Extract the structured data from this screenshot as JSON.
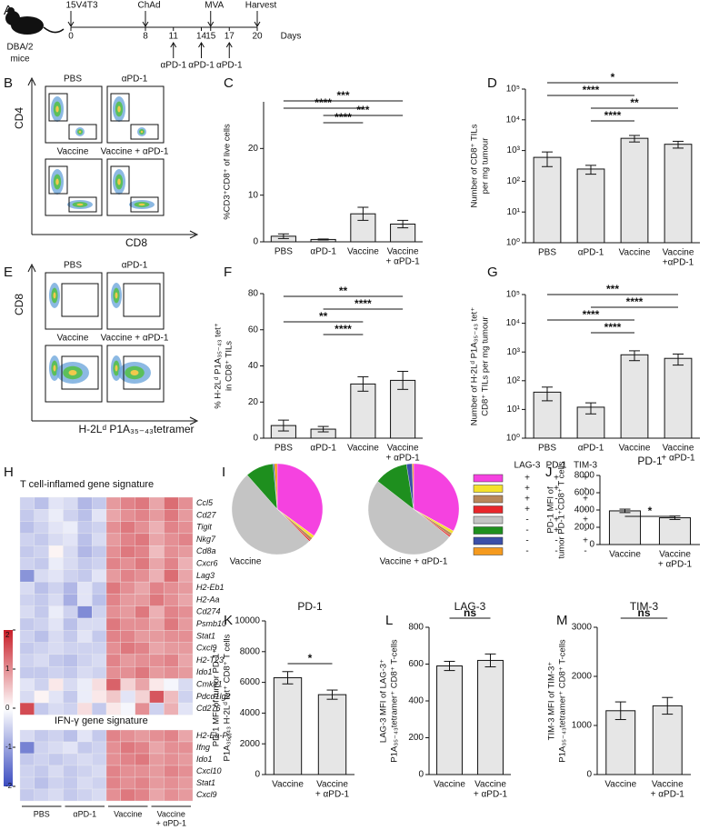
{
  "panel_labels": [
    "A",
    "B",
    "C",
    "D",
    "E",
    "F",
    "G",
    "H",
    "I",
    "J",
    "K",
    "L",
    "M"
  ],
  "timeline": {
    "mouse_label": [
      "DBA/2",
      "mice"
    ],
    "xlim": [
      0,
      20
    ],
    "ticks": [
      0,
      8,
      11,
      14,
      15,
      17,
      20
    ],
    "events_above": [
      {
        "day": 0,
        "label": "15V4T3"
      },
      {
        "day": 8,
        "label": "ChAd"
      },
      {
        "day": 15,
        "label": "MVA"
      },
      {
        "day": 20,
        "label": "Harvest"
      }
    ],
    "events_below": [
      {
        "day": 11,
        "label": "αPD-1"
      },
      {
        "day": 14,
        "label": "αPD-1"
      },
      {
        "day": 17,
        "label": "αPD-1"
      }
    ],
    "axis_label": "Days"
  },
  "flow_B": {
    "plots": [
      "PBS",
      "αPD-1",
      "Vaccine",
      "Vaccine + αPD-1"
    ],
    "x_axis": "CD8",
    "y_axis": "CD4"
  },
  "flow_E": {
    "plots": [
      "PBS",
      "αPD-1",
      "Vaccine",
      "Vaccine + αPD-1"
    ],
    "x_axis": "H-2Lᵈ P1A₃₅₋₄₃tetramer",
    "y_axis": "CD8"
  },
  "heatmap": {
    "sections": [
      {
        "title": "T cell-inflamed gene signature",
        "genes": [
          "Ccl5",
          "Cd27",
          "Tigit",
          "Nkg7",
          "Cd8a",
          "Cxcr6",
          "Lag3",
          "H2-Eb1",
          "H2-Aa",
          "Cd274",
          "Psmb10",
          "Stat1",
          "Cxcl9",
          "H2-T23",
          "Ido1",
          "Cmklr1",
          "Pdcd1lg2",
          "Cd276"
        ],
        "values": [
          [
            -0.5,
            -0.7,
            -0.3,
            -0.4,
            -0.8,
            -0.6,
            0.9,
            1.1,
            1.2,
            0.8,
            1.3,
            1.0
          ],
          [
            -0.6,
            -0.4,
            -0.2,
            -0.5,
            -0.7,
            -0.3,
            0.8,
            1.0,
            1.1,
            0.9,
            1.2,
            0.9
          ],
          [
            -0.7,
            -0.5,
            -0.3,
            -0.2,
            -0.6,
            -0.5,
            1.0,
            1.2,
            1.0,
            0.7,
            1.1,
            1.0
          ],
          [
            -0.5,
            -0.6,
            -0.4,
            -0.3,
            -0.7,
            -0.4,
            0.9,
            1.1,
            1.2,
            0.8,
            1.0,
            1.1
          ],
          [
            -0.6,
            -0.5,
            0.1,
            -0.4,
            -0.8,
            -0.6,
            1.0,
            1.2,
            1.1,
            0.6,
            1.0,
            0.9
          ],
          [
            -0.5,
            -0.6,
            -0.2,
            -0.4,
            -0.6,
            -0.5,
            1.1,
            1.0,
            1.2,
            0.8,
            1.1,
            0.7
          ],
          [
            -1.2,
            -0.4,
            -0.3,
            -0.5,
            -0.6,
            -0.3,
            0.9,
            1.1,
            1.0,
            0.7,
            1.3,
            0.8
          ],
          [
            -0.4,
            -0.7,
            -0.5,
            -0.8,
            -0.3,
            -0.6,
            1.2,
            1.0,
            0.8,
            1.1,
            1.0,
            0.9
          ],
          [
            -0.5,
            -0.6,
            -0.4,
            -0.9,
            -0.3,
            -0.7,
            1.1,
            0.9,
            0.9,
            1.2,
            1.0,
            0.8
          ],
          [
            -0.4,
            -0.6,
            -0.2,
            -0.5,
            -1.3,
            -0.5,
            1.0,
            0.9,
            1.2,
            0.7,
            1.1,
            1.0
          ],
          [
            -0.6,
            -0.5,
            -0.3,
            -0.7,
            -0.4,
            -0.4,
            1.2,
            1.0,
            1.0,
            0.8,
            1.2,
            0.9
          ],
          [
            -0.5,
            -0.7,
            -0.4,
            -0.6,
            -0.3,
            -0.6,
            1.1,
            1.1,
            0.9,
            0.9,
            1.0,
            1.0
          ],
          [
            -0.6,
            -0.5,
            -0.4,
            -0.5,
            -0.5,
            -0.5,
            1.0,
            1.2,
            1.1,
            0.8,
            0.9,
            0.9
          ],
          [
            -0.5,
            -0.4,
            -0.6,
            -0.7,
            -0.5,
            -0.4,
            1.1,
            0.9,
            1.0,
            1.0,
            1.1,
            0.8
          ],
          [
            -0.6,
            -0.6,
            -0.5,
            -0.6,
            -0.4,
            -0.5,
            1.0,
            1.0,
            1.2,
            0.9,
            1.0,
            0.9
          ],
          [
            -0.3,
            -0.5,
            0.2,
            -0.4,
            -0.2,
            0.3,
            1.4,
            0.4,
            0.8,
            0.2,
            -0.1,
            -0.4
          ],
          [
            -0.4,
            0.1,
            -0.3,
            -0.6,
            -0.2,
            0.2,
            0.5,
            -0.3,
            0.4,
            1.5,
            0.6,
            -0.5
          ],
          [
            1.6,
            -0.6,
            -0.4,
            -0.5,
            0.3,
            -0.6,
            0.2,
            -0.1,
            1.0,
            -0.5,
            0.7,
            -0.3
          ]
        ]
      },
      {
        "title": "IFN-γ gene signature",
        "genes": [
          "H2-Ea-Ps",
          "Ifng",
          "Ido1",
          "Cxcl10",
          "Stat1",
          "Cxcl9"
        ],
        "values": [
          [
            -0.4,
            -0.6,
            -0.5,
            -0.7,
            -0.3,
            -0.6,
            1.1,
            1.0,
            0.9,
            1.0,
            1.1,
            0.8
          ],
          [
            -1.4,
            -0.5,
            -0.4,
            -0.3,
            -0.6,
            -0.5,
            1.0,
            1.2,
            1.1,
            0.8,
            1.0,
            1.0
          ],
          [
            -0.6,
            -0.5,
            -0.6,
            -0.5,
            -0.4,
            -0.5,
            1.0,
            1.1,
            1.2,
            0.9,
            1.0,
            0.9
          ],
          [
            -0.5,
            -0.6,
            -0.4,
            -0.6,
            -0.5,
            -0.4,
            1.1,
            1.0,
            1.0,
            0.9,
            1.1,
            1.0
          ],
          [
            -0.5,
            -0.7,
            -0.5,
            -0.6,
            -0.4,
            -0.5,
            1.1,
            1.0,
            1.1,
            0.9,
            1.0,
            0.9
          ],
          [
            -0.6,
            -0.5,
            -0.4,
            -0.6,
            -0.5,
            -0.4,
            1.0,
            1.2,
            1.1,
            0.8,
            1.0,
            0.9
          ]
        ]
      }
    ],
    "groups": [
      [
        "PBS"
      ],
      [
        "αPD-1"
      ],
      [
        "Vaccine"
      ],
      [
        "Vaccine",
        "+ αPD-1"
      ]
    ],
    "colorbar_ticks": [
      2,
      1,
      0,
      -1,
      -2
    ],
    "clim": [
      -2,
      2
    ]
  },
  "chart_data": [
    {
      "type": "bar",
      "ylabel": [
        "%CD3⁺CD8⁺ of live cells"
      ],
      "categories": [
        [
          "PBS"
        ],
        [
          "αPD-1"
        ],
        [
          "Vaccine"
        ],
        [
          "Vaccine",
          "+ αPD-1"
        ]
      ],
      "values": [
        1.2,
        0.5,
        6,
        3.8
      ],
      "errors": [
        0.5,
        0.1,
        1.4,
        0.8
      ],
      "color": "#e6e6e6",
      "ylim": [
        0,
        30
      ],
      "yticks": [
        0,
        10,
        20
      ],
      "comparisons": [
        {
          "groups": [
            0,
            3
          ],
          "label": "***"
        },
        {
          "groups": [
            0,
            2
          ],
          "label": "****"
        },
        {
          "groups": [
            1,
            3
          ],
          "label": "***"
        },
        {
          "groups": [
            1,
            2
          ],
          "label": "****"
        }
      ]
    },
    {
      "type": "bar",
      "log": true,
      "ylabel": [
        "Number  of CD8⁺ TILs",
        "per mg tumour"
      ],
      "categories": [
        [
          "PBS"
        ],
        [
          "αPD-1"
        ],
        [
          "Vaccine"
        ],
        [
          "Vaccine",
          "+αPD-1"
        ]
      ],
      "values": [
        600,
        250,
        2500,
        1600
      ],
      "errors": [
        300,
        80,
        600,
        400
      ],
      "color": "#e6e6e6",
      "ylim": [
        1,
        100000
      ],
      "yticks": [
        {
          "value": 1,
          "label": "10⁰"
        },
        {
          "value": 10,
          "label": "10¹"
        },
        {
          "value": 100,
          "label": "10²"
        },
        {
          "value": 1000,
          "label": "10³"
        },
        {
          "value": 10000,
          "label": "10⁴"
        },
        {
          "value": 100000,
          "label": "10⁵"
        }
      ],
      "comparisons": [
        {
          "groups": [
            0,
            3
          ],
          "label": "*"
        },
        {
          "groups": [
            0,
            2
          ],
          "label": "****"
        },
        {
          "groups": [
            1,
            3
          ],
          "label": "**"
        },
        {
          "groups": [
            1,
            2
          ],
          "label": "****"
        }
      ]
    },
    {
      "type": "bar",
      "ylabel": [
        "% H-2Lᵈ P1A₃₅₋₄₃ tet⁺",
        "in CD8⁺ TILs"
      ],
      "categories": [
        [
          "PBS"
        ],
        [
          "αPD-1"
        ],
        [
          "Vaccine"
        ],
        [
          "Vaccine",
          "+ αPD-1"
        ]
      ],
      "values": [
        7,
        5,
        30,
        32
      ],
      "errors": [
        3,
        1.5,
        4,
        5
      ],
      "color": "#e6e6e6",
      "ylim": [
        0,
        80
      ],
      "yticks": [
        0,
        20,
        40,
        60,
        80
      ],
      "comparisons": [
        {
          "groups": [
            0,
            3
          ],
          "label": "**"
        },
        {
          "groups": [
            1,
            3
          ],
          "label": "****"
        },
        {
          "groups": [
            0,
            2
          ],
          "label": "**"
        },
        {
          "groups": [
            1,
            2
          ],
          "label": "****"
        }
      ]
    },
    {
      "type": "bar",
      "log": true,
      "ylabel": [
        "Number of H-2Lᵈ P1A₃₅₋₄₃ tet⁺",
        "CD8⁺ TILs per mg tumour"
      ],
      "categories": [
        [
          "PBS"
        ],
        [
          "αPD-1"
        ],
        [
          "Vaccine"
        ],
        [
          "Vaccine",
          "+ αPD-1"
        ]
      ],
      "values": [
        40,
        12,
        800,
        600
      ],
      "errors": [
        20,
        5,
        300,
        250
      ],
      "color": "#e6e6e6",
      "ylim": [
        1,
        100000
      ],
      "yticks": [
        {
          "value": 1,
          "label": "10⁰"
        },
        {
          "value": 10,
          "label": "10¹"
        },
        {
          "value": 100,
          "label": "10²"
        },
        {
          "value": 1000,
          "label": "10³"
        },
        {
          "value": 10000,
          "label": "10⁴"
        },
        {
          "value": 100000,
          "label": "10⁵"
        }
      ],
      "comparisons": [
        {
          "groups": [
            0,
            3
          ],
          "label": "***"
        },
        {
          "groups": [
            1,
            3
          ],
          "label": "****"
        },
        {
          "groups": [
            0,
            2
          ],
          "label": "****"
        },
        {
          "groups": [
            1,
            2
          ],
          "label": "****"
        }
      ]
    },
    {
      "type": "bar",
      "title": "PD-1",
      "ylabel": [
        "PD-1 MFI of",
        "tumor PD-1⁺CD8⁺ T cells"
      ],
      "categories": [
        [
          "Vaccine"
        ],
        [
          "Vaccine",
          "+ αPD-1"
        ]
      ],
      "values": [
        3900,
        3100
      ],
      "errors": [
        200,
        200
      ],
      "color": "#e6e6e6",
      "ylim": [
        0,
        8000
      ],
      "yticks": [
        0,
        2000,
        4000,
        6000,
        8000
      ],
      "comparisons": [
        {
          "groups": [
            0,
            1
          ],
          "label": "*"
        }
      ]
    },
    {
      "type": "bar",
      "title": "PD-1",
      "ylabel": [
        "PD-1 MFI of  tumor PD-1⁺",
        "P1A₃₅₋₄₃ H-2Lᵈ tet⁺ CD8⁺ T cells"
      ],
      "categories": [
        [
          "Vaccine"
        ],
        [
          "Vaccine",
          "+ αPD-1"
        ]
      ],
      "values": [
        6300,
        5200
      ],
      "errors": [
        400,
        300
      ],
      "color": "#e6e6e6",
      "ylim": [
        0,
        10000
      ],
      "yticks": [
        0,
        2000,
        4000,
        6000,
        8000,
        10000
      ],
      "comparisons": [
        {
          "groups": [
            0,
            1
          ],
          "label": "*"
        }
      ]
    },
    {
      "type": "bar",
      "title": "LAG-3",
      "ylabel": [
        "LAG-3 MFI of LAG-3⁺",
        "P1A₃₅₋₄₃tetramer⁺ CD8⁺ T-cells"
      ],
      "categories": [
        [
          "Vaccine"
        ],
        [
          "Vaccine",
          "+ αPD-1"
        ]
      ],
      "values": [
        590,
        620
      ],
      "errors": [
        25,
        35
      ],
      "color": "#e6e6e6",
      "ylim": [
        0,
        800
      ],
      "yticks": [
        0,
        200,
        400,
        600,
        800
      ],
      "comparisons": [
        {
          "groups": [
            0,
            1
          ],
          "label": "ns"
        }
      ]
    },
    {
      "type": "bar",
      "title": "TIM-3",
      "ylabel": [
        "TIM-3 MFI of TIM-3⁺",
        "P1A₃₅₋₄₃tetramer⁺ CD8⁺ T-cells"
      ],
      "categories": [
        [
          "Vaccine"
        ],
        [
          "Vaccine",
          "+ αPD-1"
        ]
      ],
      "values": [
        1300,
        1400
      ],
      "errors": [
        180,
        170
      ],
      "color": "#e6e6e6",
      "ylim": [
        0,
        3000
      ],
      "yticks": [
        0,
        1000,
        2000,
        3000
      ],
      "comparisons": [
        {
          "groups": [
            0,
            1
          ],
          "label": "ns"
        }
      ]
    },
    {
      "type": "pie",
      "legend_headers": [
        "LAG-3",
        "PD-1",
        "TIM-3"
      ],
      "colors": [
        "#f542e0",
        "#f5e12a",
        "#b8875a",
        "#e8262b",
        "#c4c4c4",
        "#1e8f1e",
        "#3b4fa8",
        "#f59a1e"
      ],
      "markers": [
        [
          "+",
          "+",
          "+"
        ],
        [
          "+",
          "+",
          "-"
        ],
        [
          "+",
          "-",
          "+"
        ],
        [
          "+",
          "-",
          "-"
        ],
        [
          "-",
          "+",
          "+"
        ],
        [
          "-",
          "+",
          "-"
        ],
        [
          "-",
          "-",
          "+"
        ],
        [
          "-",
          "-",
          "-"
        ]
      ],
      "series": [
        {
          "name": "Vaccine",
          "values": [
            35,
            1,
            1,
            0.5,
            51,
            10,
            0.5,
            1
          ]
        },
        {
          "name": "Vaccine + αPD-1",
          "values": [
            33,
            1,
            1,
            0.5,
            50,
            12,
            2,
            0.5
          ]
        }
      ]
    }
  ]
}
